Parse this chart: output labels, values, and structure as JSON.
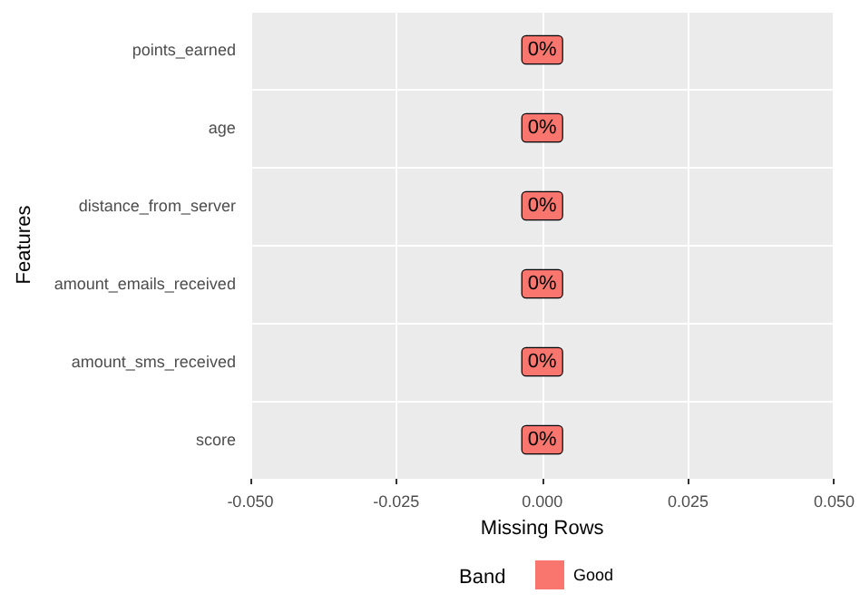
{
  "chart_data": {
    "type": "bar",
    "orientation": "horizontal",
    "xlabel": "Missing Rows",
    "ylabel": "Features",
    "legend_title": "Band",
    "legend": "bottom",
    "grid": true,
    "categories": [
      "points_earned",
      "age",
      "distance_from_server",
      "amount_emails_received",
      "amount_sms_received",
      "score"
    ],
    "series": [
      {
        "name": "Good",
        "color": "#f8766d",
        "values": [
          0,
          0,
          0,
          0,
          0,
          0
        ],
        "value_labels": [
          "0%",
          "0%",
          "0%",
          "0%",
          "0%",
          "0%"
        ]
      }
    ],
    "xlim": [
      -0.05,
      0.05
    ],
    "xticks": [
      {
        "value": -0.05,
        "label": "-0.050"
      },
      {
        "value": -0.025,
        "label": "-0.025"
      },
      {
        "value": 0,
        "label": "0.000"
      },
      {
        "value": 0.025,
        "label": "0.025"
      },
      {
        "value": 0.05,
        "label": "0.050"
      }
    ]
  }
}
